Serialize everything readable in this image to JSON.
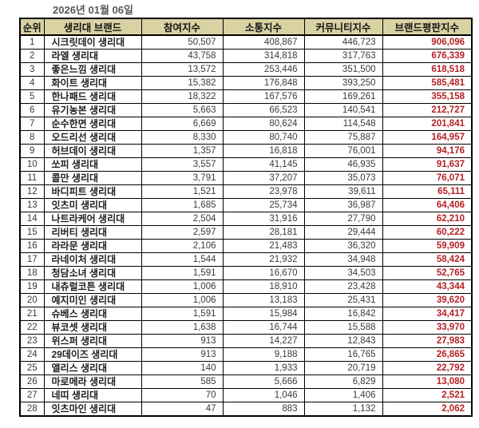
{
  "date_label": "2026년 01월 06일",
  "colors": {
    "header_bg": "#d9d2a3",
    "border_color": "#000000",
    "reputation_red": "#b52025",
    "body_text": "#3a3a3a",
    "brand_text": "#1f1f1f",
    "date_text": "#575757"
  },
  "chart_data": {
    "type": "table",
    "title": "2026년 01월 06일",
    "columns": [
      {
        "key": "rank",
        "label": "순위"
      },
      {
        "key": "brand",
        "label": "생리대 브랜드"
      },
      {
        "key": "participation",
        "label": "참여지수"
      },
      {
        "key": "communication",
        "label": "소통지수"
      },
      {
        "key": "community",
        "label": "커뮤니티지수"
      },
      {
        "key": "reputation",
        "label": "브랜드평판지수"
      }
    ],
    "rows": [
      [
        "1",
        "시크릿데이 생리대",
        "50,507",
        "408,867",
        "446,723",
        "906,096"
      ],
      [
        "2",
        "라엘 생리대",
        "43,758",
        "314,818",
        "317,763",
        "676,339"
      ],
      [
        "3",
        "좋은느낌 생리대",
        "13,572",
        "253,446",
        "351,500",
        "618,518"
      ],
      [
        "4",
        "화이트 생리대",
        "15,382",
        "176,848",
        "393,250",
        "585,481"
      ],
      [
        "5",
        "한나패드 생리대",
        "18,322",
        "167,576",
        "169,261",
        "355,158"
      ],
      [
        "6",
        "유기농본 생리대",
        "5,663",
        "66,523",
        "140,541",
        "212,727"
      ],
      [
        "7",
        "순수한면 생리대",
        "6,669",
        "80,624",
        "114,548",
        "201,841"
      ],
      [
        "8",
        "오드리선 생리대",
        "8,330",
        "80,740",
        "75,887",
        "164,957"
      ],
      [
        "9",
        "허브데이 생리대",
        "1,357",
        "16,818",
        "76,001",
        "94,176"
      ],
      [
        "10",
        "쏘피 생리대",
        "3,557",
        "41,145",
        "46,935",
        "91,637"
      ],
      [
        "11",
        "콜만 생리대",
        "3,791",
        "37,207",
        "35,073",
        "76,071"
      ],
      [
        "12",
        "바디피트 생리대",
        "1,521",
        "23,978",
        "39,611",
        "65,111"
      ],
      [
        "13",
        "잇츠미 생리대",
        "1,685",
        "25,734",
        "36,987",
        "64,406"
      ],
      [
        "14",
        "나트라케어 생리대",
        "2,504",
        "31,916",
        "27,790",
        "62,210"
      ],
      [
        "15",
        "리버티 생리대",
        "2,597",
        "28,181",
        "29,444",
        "60,222"
      ],
      [
        "16",
        "라라문 생리대",
        "2,106",
        "21,483",
        "36,320",
        "59,909"
      ],
      [
        "17",
        "라네이처 생리대",
        "1,544",
        "21,932",
        "34,948",
        "58,424"
      ],
      [
        "18",
        "청담소녀 생리대",
        "1,591",
        "16,670",
        "34,503",
        "52,765"
      ],
      [
        "19",
        "내츄럴코튼 생리대",
        "1,006",
        "18,910",
        "23,428",
        "43,344"
      ],
      [
        "20",
        "예지미인 생리대",
        "1,006",
        "13,183",
        "25,431",
        "39,620"
      ],
      [
        "21",
        "슈베스 생리대",
        "1,591",
        "15,984",
        "16,842",
        "34,417"
      ],
      [
        "22",
        "뷰코셋 생리대",
        "1,638",
        "16,744",
        "15,588",
        "33,970"
      ],
      [
        "23",
        "위스퍼 생리대",
        "913",
        "14,227",
        "12,843",
        "27,983"
      ],
      [
        "24",
        "29데이즈 생리대",
        "913",
        "9,188",
        "16,765",
        "26,865"
      ],
      [
        "25",
        "앨리스 생리대",
        "140",
        "1,933",
        "20,719",
        "22,792"
      ],
      [
        "26",
        "마로메라 생리대",
        "585",
        "5,666",
        "6,829",
        "13,080"
      ],
      [
        "27",
        "네띠 생리대",
        "70",
        "1,046",
        "1,406",
        "2,521"
      ],
      [
        "28",
        "잇츠마인 생리대",
        "47",
        "883",
        "1,132",
        "2,062"
      ]
    ]
  }
}
